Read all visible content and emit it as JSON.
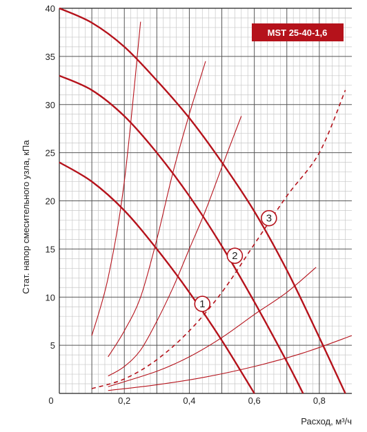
{
  "chart_data": {
    "type": "line",
    "title": "",
    "badge": "MST 25-40-1,6",
    "xlabel": "Расход, м³/ч",
    "ylabel": "Стат. напор  смесительного узла, кПа",
    "xlim": [
      0,
      0.9
    ],
    "ylim": [
      0,
      40
    ],
    "x_ticks": [
      {
        "value": 0.2,
        "label": "0,2"
      },
      {
        "value": 0.4,
        "label": "0,4"
      },
      {
        "value": 0.6,
        "label": "0,6"
      },
      {
        "value": 0.8,
        "label": "0,8"
      }
    ],
    "y_ticks": [
      {
        "value": 5,
        "label": "5"
      },
      {
        "value": 10,
        "label": "10"
      },
      {
        "value": 15,
        "label": "15"
      },
      {
        "value": 20,
        "label": "20"
      },
      {
        "value": 25,
        "label": "25"
      },
      {
        "value": 30,
        "label": "30"
      },
      {
        "value": 35,
        "label": "35"
      },
      {
        "value": 40,
        "label": "40"
      }
    ],
    "origin_label": "0",
    "grid": true,
    "colors": {
      "line": "#b5121b",
      "grid_major": "#555555",
      "grid_minor": "#c8c8c8",
      "badge": "#b5121b"
    },
    "pump_curves": [
      {
        "label": "1",
        "marker": [
          0.44,
          9.3
        ],
        "points": [
          [
            0,
            24.0
          ],
          [
            0.1,
            22.0
          ],
          [
            0.2,
            19.0
          ],
          [
            0.3,
            15.0
          ],
          [
            0.4,
            10.5
          ],
          [
            0.5,
            5.5
          ],
          [
            0.6,
            0.0
          ]
        ]
      },
      {
        "label": "2",
        "marker": [
          0.54,
          14.3
        ],
        "points": [
          [
            0,
            33.0
          ],
          [
            0.1,
            31.5
          ],
          [
            0.2,
            28.8
          ],
          [
            0.3,
            25.0
          ],
          [
            0.4,
            20.5
          ],
          [
            0.5,
            15.3
          ],
          [
            0.6,
            9.5
          ],
          [
            0.7,
            3.3
          ],
          [
            0.75,
            0.0
          ]
        ]
      },
      {
        "label": "3",
        "marker": [
          0.645,
          18.2
        ],
        "points": [
          [
            0,
            40.0
          ],
          [
            0.1,
            38.5
          ],
          [
            0.2,
            36.0
          ],
          [
            0.3,
            32.5
          ],
          [
            0.4,
            28.6
          ],
          [
            0.5,
            24.0
          ],
          [
            0.6,
            18.9
          ],
          [
            0.7,
            12.8
          ],
          [
            0.8,
            5.8
          ],
          [
            0.88,
            0.0
          ]
        ]
      }
    ],
    "system_curves": [
      {
        "dashed": false,
        "points": [
          [
            0.1,
            6.0
          ],
          [
            0.15,
            12.0
          ],
          [
            0.2,
            22.0
          ],
          [
            0.25,
            38.6
          ]
        ]
      },
      {
        "dashed": false,
        "points": [
          [
            0.15,
            3.8
          ],
          [
            0.2,
            6.5
          ],
          [
            0.25,
            10.0
          ],
          [
            0.3,
            16.0
          ],
          [
            0.35,
            23.0
          ],
          [
            0.4,
            29.0
          ],
          [
            0.45,
            34.5
          ]
        ]
      },
      {
        "dashed": false,
        "points": [
          [
            0.15,
            1.8
          ],
          [
            0.2,
            2.8
          ],
          [
            0.25,
            4.5
          ],
          [
            0.3,
            7.5
          ],
          [
            0.35,
            11.0
          ],
          [
            0.4,
            15.0
          ],
          [
            0.45,
            19.0
          ],
          [
            0.5,
            23.5
          ],
          [
            0.56,
            28.8
          ]
        ]
      },
      {
        "dashed": true,
        "points": [
          [
            0.1,
            0.5
          ],
          [
            0.2,
            1.5
          ],
          [
            0.3,
            3.5
          ],
          [
            0.4,
            6.5
          ],
          [
            0.5,
            10.5
          ],
          [
            0.6,
            15.5
          ],
          [
            0.7,
            20.5
          ],
          [
            0.8,
            25.0
          ],
          [
            0.88,
            31.5
          ]
        ]
      },
      {
        "dashed": false,
        "points": [
          [
            0.15,
            0.7
          ],
          [
            0.3,
            2.3
          ],
          [
            0.4,
            3.8
          ],
          [
            0.5,
            5.8
          ],
          [
            0.6,
            8.2
          ],
          [
            0.7,
            10.5
          ],
          [
            0.79,
            13.1
          ]
        ]
      },
      {
        "dashed": false,
        "points": [
          [
            0.15,
            0.3
          ],
          [
            0.3,
            0.9
          ],
          [
            0.45,
            1.7
          ],
          [
            0.6,
            2.8
          ],
          [
            0.75,
            4.2
          ],
          [
            0.9,
            6.0
          ]
        ]
      }
    ]
  }
}
